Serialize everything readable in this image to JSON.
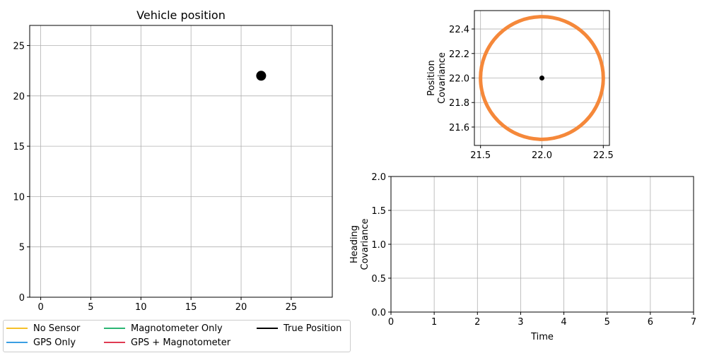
{
  "chart_data": [
    {
      "type": "scatter",
      "title": "Vehicle position",
      "xlabel": "",
      "ylabel": "",
      "xlim": [
        -1.1,
        29.1
      ],
      "ylim": [
        0,
        27
      ],
      "xticks": [
        0,
        5,
        10,
        15,
        20,
        25
      ],
      "yticks": [
        0,
        5,
        10,
        15,
        20,
        25
      ],
      "grid": true,
      "points": [
        {
          "x": 22,
          "y": 22,
          "color": "#000000"
        }
      ]
    },
    {
      "type": "line",
      "title": "",
      "xlabel": "",
      "ylabel": "Position\nCovariance",
      "xlim": [
        21.45,
        22.55
      ],
      "ylim": [
        21.45,
        22.55
      ],
      "xticks": [
        21.5,
        22.0,
        22.5
      ],
      "yticks": [
        21.6,
        21.8,
        22.0,
        22.2,
        22.4
      ],
      "grid": true,
      "ellipse": {
        "cx": 22.0,
        "cy": 22.0,
        "rx": 0.5,
        "ry": 0.5,
        "color": "#f5883a"
      },
      "center_point": {
        "x": 22.0,
        "y": 22.0,
        "color": "#000000"
      }
    },
    {
      "type": "line",
      "title": "",
      "xlabel": "Time",
      "ylabel": "Heading\nCovariance",
      "xlim": [
        0,
        7
      ],
      "ylim": [
        0,
        2.0
      ],
      "xticks": [
        0,
        1,
        2,
        3,
        4,
        5,
        6,
        7
      ],
      "yticks": [
        0.0,
        0.5,
        1.0,
        1.5,
        2.0
      ],
      "grid": true,
      "series": []
    }
  ],
  "legend": {
    "placement": "bottom-left",
    "entries": [
      {
        "label": "No Sensor",
        "color": "#f5c02a"
      },
      {
        "label": "GPS Only",
        "color": "#3a9fe3"
      },
      {
        "label": "Magnotometer Only",
        "color": "#2bb673"
      },
      {
        "label": "GPS + Magnotometer",
        "color": "#e03a52"
      },
      {
        "label": "True Position",
        "color": "#000000"
      }
    ]
  }
}
